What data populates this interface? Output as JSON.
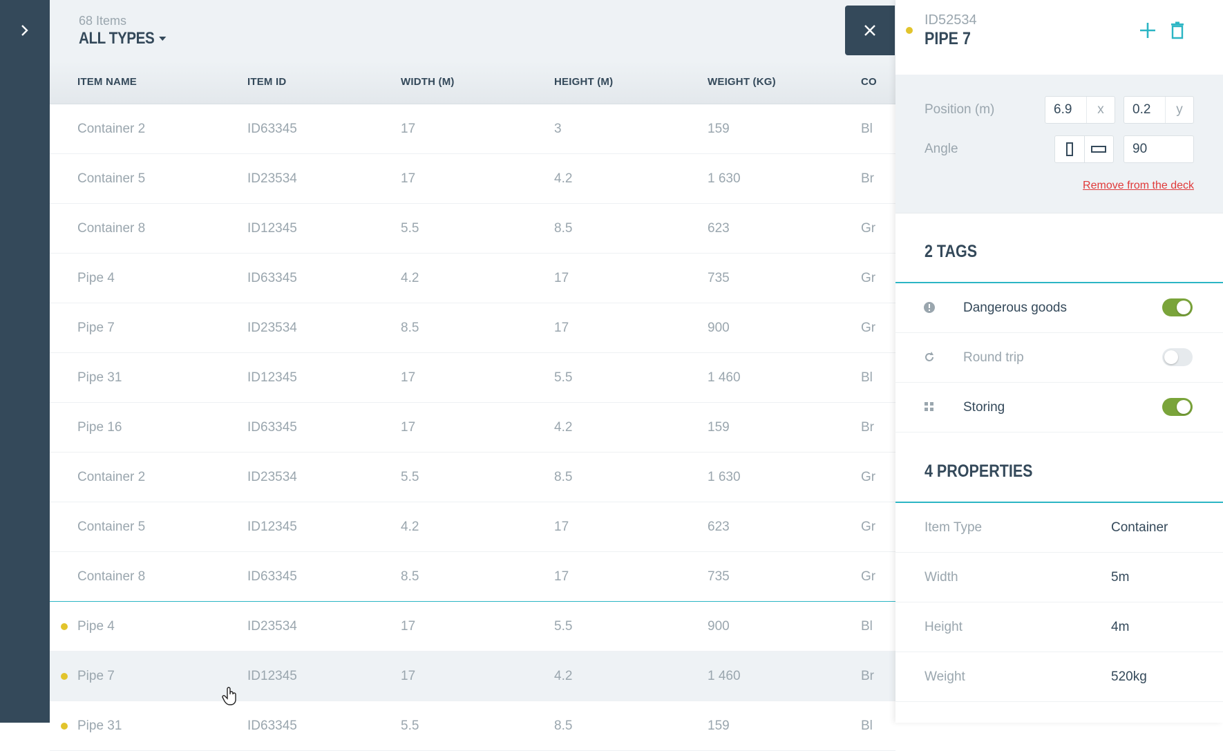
{
  "list": {
    "count": "68 Items",
    "type_filter": "ALL TYPES",
    "columns": [
      "ITEM NAME",
      "ITEM ID",
      "WIDTH (M)",
      "HEIGHT (M)",
      "WEIGHT (KG)",
      "CO"
    ],
    "rows": [
      {
        "name": "Container 2",
        "id": "ID63345",
        "width": "17",
        "height": "3",
        "weight": "159",
        "extra": "Bl"
      },
      {
        "name": "Container 5",
        "id": "ID23534",
        "width": "17",
        "height": "4.2",
        "weight": "1 630",
        "extra": "Br"
      },
      {
        "name": "Container 8",
        "id": "ID12345",
        "width": "5.5",
        "height": "8.5",
        "weight": "623",
        "extra": "Gr"
      },
      {
        "name": "Pipe 4",
        "id": "ID63345",
        "width": "4.2",
        "height": "17",
        "weight": "735",
        "extra": "Gr"
      },
      {
        "name": "Pipe 7",
        "id": "ID23534",
        "width": "8.5",
        "height": "17",
        "weight": "900",
        "extra": "Gr"
      },
      {
        "name": "Pipe 31",
        "id": "ID12345",
        "width": "17",
        "height": "5.5",
        "weight": "1 460",
        "extra": "Bl"
      },
      {
        "name": "Pipe 16",
        "id": "ID63345",
        "width": "17",
        "height": "4.2",
        "weight": "159",
        "extra": "Br"
      },
      {
        "name": "Container 2",
        "id": "ID23534",
        "width": "5.5",
        "height": "8.5",
        "weight": "1 630",
        "extra": "Gr"
      },
      {
        "name": "Container 5",
        "id": "ID12345",
        "width": "4.2",
        "height": "17",
        "weight": "623",
        "extra": "Gr"
      },
      {
        "name": "Container 8",
        "id": "ID63345",
        "width": "8.5",
        "height": "17",
        "weight": "735",
        "extra": "Gr"
      },
      {
        "name": "Pipe 4",
        "id": "ID23534",
        "width": "17",
        "height": "5.5",
        "weight": "900",
        "extra": "Bl"
      },
      {
        "name": "Pipe 7",
        "id": "ID12345",
        "width": "17",
        "height": "4.2",
        "weight": "1 460",
        "extra": "Br"
      },
      {
        "name": "Pipe 31",
        "id": "ID63345",
        "width": "5.5",
        "height": "8.5",
        "weight": "159",
        "extra": "Bl"
      }
    ]
  },
  "detail": {
    "item_id": "ID52534",
    "item_name": "PIPE 7",
    "position_label": "Position (m)",
    "position_x": "6.9",
    "position_x_unit": "x",
    "position_y": "0.2",
    "position_y_unit": "y",
    "angle_label": "Angle",
    "angle_value": "90",
    "remove_label": "Remove from the deck",
    "tags_title": "2 TAGS",
    "tags": [
      {
        "label": "Dangerous goods",
        "icon": "alert-icon",
        "on": true
      },
      {
        "label": "Round trip",
        "icon": "round-trip-icon",
        "on": false
      },
      {
        "label": "Storing",
        "icon": "grid-icon",
        "on": true
      }
    ],
    "properties_title": "4 PROPERTIES",
    "properties": [
      {
        "key": "Item Type",
        "value": "Container"
      },
      {
        "key": "Width",
        "value": "5m"
      },
      {
        "key": "Height",
        "value": "4m"
      },
      {
        "key": "Weight",
        "value": "520kg"
      }
    ]
  },
  "colors": {
    "sidebar": "#34495a",
    "accent": "#2bb5c4",
    "marker": "#e2c42c",
    "toggle_on": "#7aa43a",
    "danger": "#e03a3a"
  }
}
